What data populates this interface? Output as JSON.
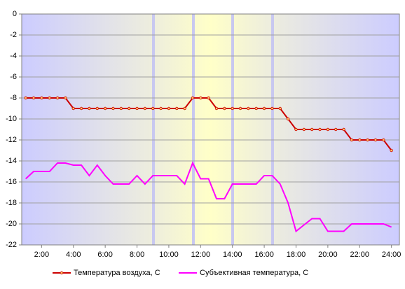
{
  "chart_data": {
    "type": "line",
    "x": [
      1,
      1.5,
      2,
      2.5,
      3,
      3.5,
      4,
      4.5,
      5,
      5.5,
      6,
      6.5,
      7,
      7.5,
      8,
      8.5,
      9,
      9.5,
      10,
      10.5,
      11,
      11.5,
      12,
      12.5,
      13,
      13.5,
      14,
      14.5,
      15,
      15.5,
      16,
      16.5,
      17,
      17.5,
      18,
      18.5,
      19,
      19.5,
      20,
      20.5,
      21,
      21.5,
      22,
      22.5,
      23,
      23.5,
      24
    ],
    "series": [
      {
        "name": "Температура воздуха, С",
        "color": "#cc0000",
        "markers": true,
        "values": [
          -8,
          -8,
          -8,
          -8,
          -8,
          -8,
          -9,
          -9,
          -9,
          -9,
          -9,
          -9,
          -9,
          -9,
          -9,
          -9,
          -9,
          -9,
          -9,
          -9,
          -9,
          -8,
          -8,
          -8,
          -9,
          -9,
          -9,
          -9,
          -9,
          -9,
          -9,
          -9,
          -9,
          -10,
          -11,
          -11,
          -11,
          -11,
          -11,
          -11,
          -11,
          -12,
          -12,
          -12,
          -12,
          -12,
          -13
        ]
      },
      {
        "name": "Субъективная температура, С",
        "color": "#ff00ff",
        "markers": false,
        "values": [
          -15.7,
          -15,
          -15,
          -15,
          -14.2,
          -14.2,
          -14.4,
          -14.4,
          -15.4,
          -14.4,
          -15.4,
          -16.2,
          -16.2,
          -16.2,
          -15.4,
          -16.2,
          -15.4,
          -15.4,
          -15.4,
          -15.4,
          -16.2,
          -14.2,
          -15.7,
          -15.7,
          -17.6,
          -17.6,
          -16.2,
          -16.2,
          -16.2,
          -16.2,
          -15.4,
          -15.4,
          -16.2,
          -18,
          -20.7,
          -20.1,
          -19.5,
          -19.5,
          -20.7,
          -20.7,
          -20.7,
          -20,
          -20,
          -20,
          -20,
          -20,
          -20.3
        ]
      }
    ],
    "xlim": [
      0.75,
      24.5
    ],
    "xticks": [
      {
        "value": 2,
        "label": "2:00"
      },
      {
        "value": 4,
        "label": "4:00"
      },
      {
        "value": 6,
        "label": "6:00"
      },
      {
        "value": 8,
        "label": "8:00"
      },
      {
        "value": 10,
        "label": "10:00"
      },
      {
        "value": 12,
        "label": "12:00"
      },
      {
        "value": 14,
        "label": "14:00"
      },
      {
        "value": 16,
        "label": "16:00"
      },
      {
        "value": 18,
        "label": "18:00"
      },
      {
        "value": 20,
        "label": "20:00"
      },
      {
        "value": 22,
        "label": "22:00"
      },
      {
        "value": 24,
        "label": "24:00"
      }
    ],
    "ylim": [
      -22,
      0
    ],
    "yticks": [
      0,
      -2,
      -4,
      -6,
      -8,
      -10,
      -12,
      -14,
      -16,
      -18,
      -20,
      -22
    ],
    "grid": true
  }
}
